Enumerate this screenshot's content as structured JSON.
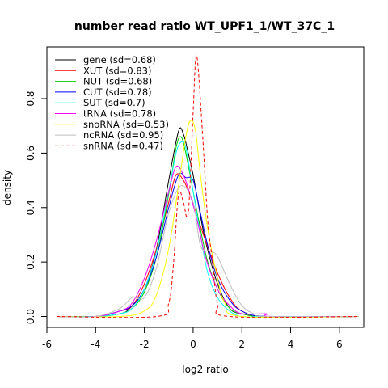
{
  "chart_data": {
    "type": "line",
    "title": "number read ratio WT_UPF1_1/WT_37C_1",
    "xlabel": "log2 ratio",
    "ylabel": "density",
    "xlim": [
      -6.0,
      7.0
    ],
    "ylim": [
      -0.04,
      0.99
    ],
    "x_ticks": [
      -6,
      -4,
      -2,
      0,
      2,
      4,
      6
    ],
    "y_ticks": [
      0.0,
      0.2,
      0.4,
      0.6,
      0.8
    ],
    "x_tick_labels": [
      "-6",
      "-4",
      "-2",
      "0",
      "2",
      "4",
      "6"
    ],
    "y_tick_labels": [
      "0.0",
      "0.2",
      "0.4",
      "0.6",
      "0.8"
    ],
    "grid": false,
    "legend_position": "top-left",
    "series": [
      {
        "name": "gene (sd=0.68)",
        "color": "#000000",
        "dash": "solid",
        "x": [
          -5.6,
          -4.0,
          -3.0,
          -2.6,
          -2.0,
          -1.5,
          -1.0,
          -0.6,
          -0.4,
          -0.2,
          0.0,
          0.2,
          0.5,
          1.0,
          1.5,
          2.0,
          3.0,
          6.8
        ],
        "y": [
          0.0,
          0.0,
          0.01,
          0.03,
          0.1,
          0.25,
          0.5,
          0.68,
          0.67,
          0.6,
          0.52,
          0.42,
          0.28,
          0.12,
          0.03,
          0.01,
          0.0,
          0.0
        ]
      },
      {
        "name": "XUT (sd=0.83)",
        "color": "#ff0000",
        "dash": "solid",
        "x": [
          -5.6,
          -4.0,
          -3.0,
          -2.5,
          -2.0,
          -1.5,
          -1.0,
          -0.7,
          -0.4,
          -0.1,
          0.2,
          0.5,
          1.0,
          1.5,
          2.0,
          3.0,
          6.8
        ],
        "y": [
          0.0,
          0.0,
          0.02,
          0.04,
          0.12,
          0.25,
          0.42,
          0.52,
          0.5,
          0.44,
          0.36,
          0.28,
          0.16,
          0.07,
          0.02,
          0.0,
          0.0
        ]
      },
      {
        "name": "NUT (sd=0.68)",
        "color": "#00cd00",
        "dash": "solid",
        "x": [
          -5.6,
          -4.0,
          -3.0,
          -2.5,
          -2.0,
          -1.5,
          -1.0,
          -0.7,
          -0.5,
          -0.3,
          0.0,
          0.3,
          0.6,
          1.0,
          1.5,
          2.0,
          3.0,
          6.8
        ],
        "y": [
          0.0,
          0.0,
          0.01,
          0.03,
          0.09,
          0.22,
          0.45,
          0.62,
          0.66,
          0.6,
          0.46,
          0.32,
          0.2,
          0.1,
          0.03,
          0.01,
          0.0,
          0.0
        ]
      },
      {
        "name": "CUT (sd=0.78)",
        "color": "#0000ff",
        "dash": "solid",
        "x": [
          -5.6,
          -4.0,
          -3.0,
          -2.5,
          -2.0,
          -1.5,
          -1.0,
          -0.6,
          -0.3,
          0.0,
          0.3,
          0.6,
          1.0,
          1.5,
          2.0,
          3.0,
          6.8
        ],
        "y": [
          0.0,
          0.0,
          0.02,
          0.04,
          0.1,
          0.22,
          0.4,
          0.52,
          0.51,
          0.5,
          0.38,
          0.26,
          0.14,
          0.06,
          0.02,
          0.0,
          0.0
        ]
      },
      {
        "name": "SUT (sd=0.7)",
        "color": "#00ffff",
        "dash": "solid",
        "x": [
          -5.6,
          -4.0,
          -3.0,
          -2.5,
          -2.0,
          -1.5,
          -1.0,
          -0.7,
          -0.5,
          -0.3,
          0.0,
          0.3,
          0.6,
          1.0,
          1.5,
          2.0,
          3.0,
          6.8
        ],
        "y": [
          0.0,
          0.0,
          0.01,
          0.03,
          0.1,
          0.24,
          0.46,
          0.6,
          0.64,
          0.62,
          0.46,
          0.3,
          0.16,
          0.07,
          0.02,
          0.0,
          0.0,
          0.0
        ]
      },
      {
        "name": "tRNA (sd=0.78)",
        "color": "#ff00ff",
        "dash": "solid",
        "x": [
          -5.6,
          -4.0,
          -3.0,
          -2.5,
          -2.0,
          -1.5,
          -1.0,
          -0.7,
          -0.4,
          -0.1,
          0.2,
          0.5,
          1.0,
          1.5,
          2.0,
          3.0,
          3.2,
          6.8
        ],
        "y": [
          0.0,
          0.0,
          0.02,
          0.05,
          0.14,
          0.28,
          0.46,
          0.55,
          0.52,
          0.44,
          0.34,
          0.22,
          0.1,
          0.04,
          0.01,
          0.01,
          0.0,
          0.0
        ]
      },
      {
        "name": "snoRNA (sd=0.53)",
        "color": "#ffff00",
        "dash": "solid",
        "x": [
          -5.6,
          -3.0,
          -2.0,
          -1.5,
          -1.0,
          -0.6,
          -0.3,
          -0.1,
          0.1,
          0.3,
          0.6,
          1.0,
          1.3,
          2.0,
          6.8
        ],
        "y": [
          0.0,
          0.0,
          0.02,
          0.08,
          0.25,
          0.48,
          0.66,
          0.72,
          0.68,
          0.52,
          0.32,
          0.14,
          0.05,
          0.0,
          0.0
        ]
      },
      {
        "name": "ncRNA (sd=0.95)",
        "color": "#bebebe",
        "dash": "solid",
        "x": [
          -5.6,
          -4.0,
          -3.0,
          -2.5,
          -2.0,
          -1.5,
          -1.0,
          -0.5,
          0.0,
          0.3,
          0.7,
          1.0,
          1.5,
          2.0,
          2.5,
          3.0,
          6.8
        ],
        "y": [
          0.0,
          0.0,
          0.03,
          0.07,
          0.07,
          0.18,
          0.38,
          0.48,
          0.42,
          0.26,
          0.24,
          0.22,
          0.12,
          0.04,
          0.01,
          0.0,
          0.0
        ]
      },
      {
        "name": "snRNA (sd=0.47)",
        "color": "#ff0000",
        "dash": "dashed",
        "x": [
          -5.6,
          -1.5,
          -1.0,
          -0.8,
          -0.6,
          -0.4,
          -0.2,
          0.0,
          0.1,
          0.2,
          0.4,
          0.6,
          0.8,
          1.0,
          1.5,
          6.8
        ],
        "y": [
          0.0,
          0.0,
          0.05,
          0.2,
          0.45,
          0.42,
          0.38,
          0.75,
          0.94,
          0.92,
          0.65,
          0.35,
          0.2,
          0.05,
          0.0,
          0.0
        ]
      }
    ]
  }
}
